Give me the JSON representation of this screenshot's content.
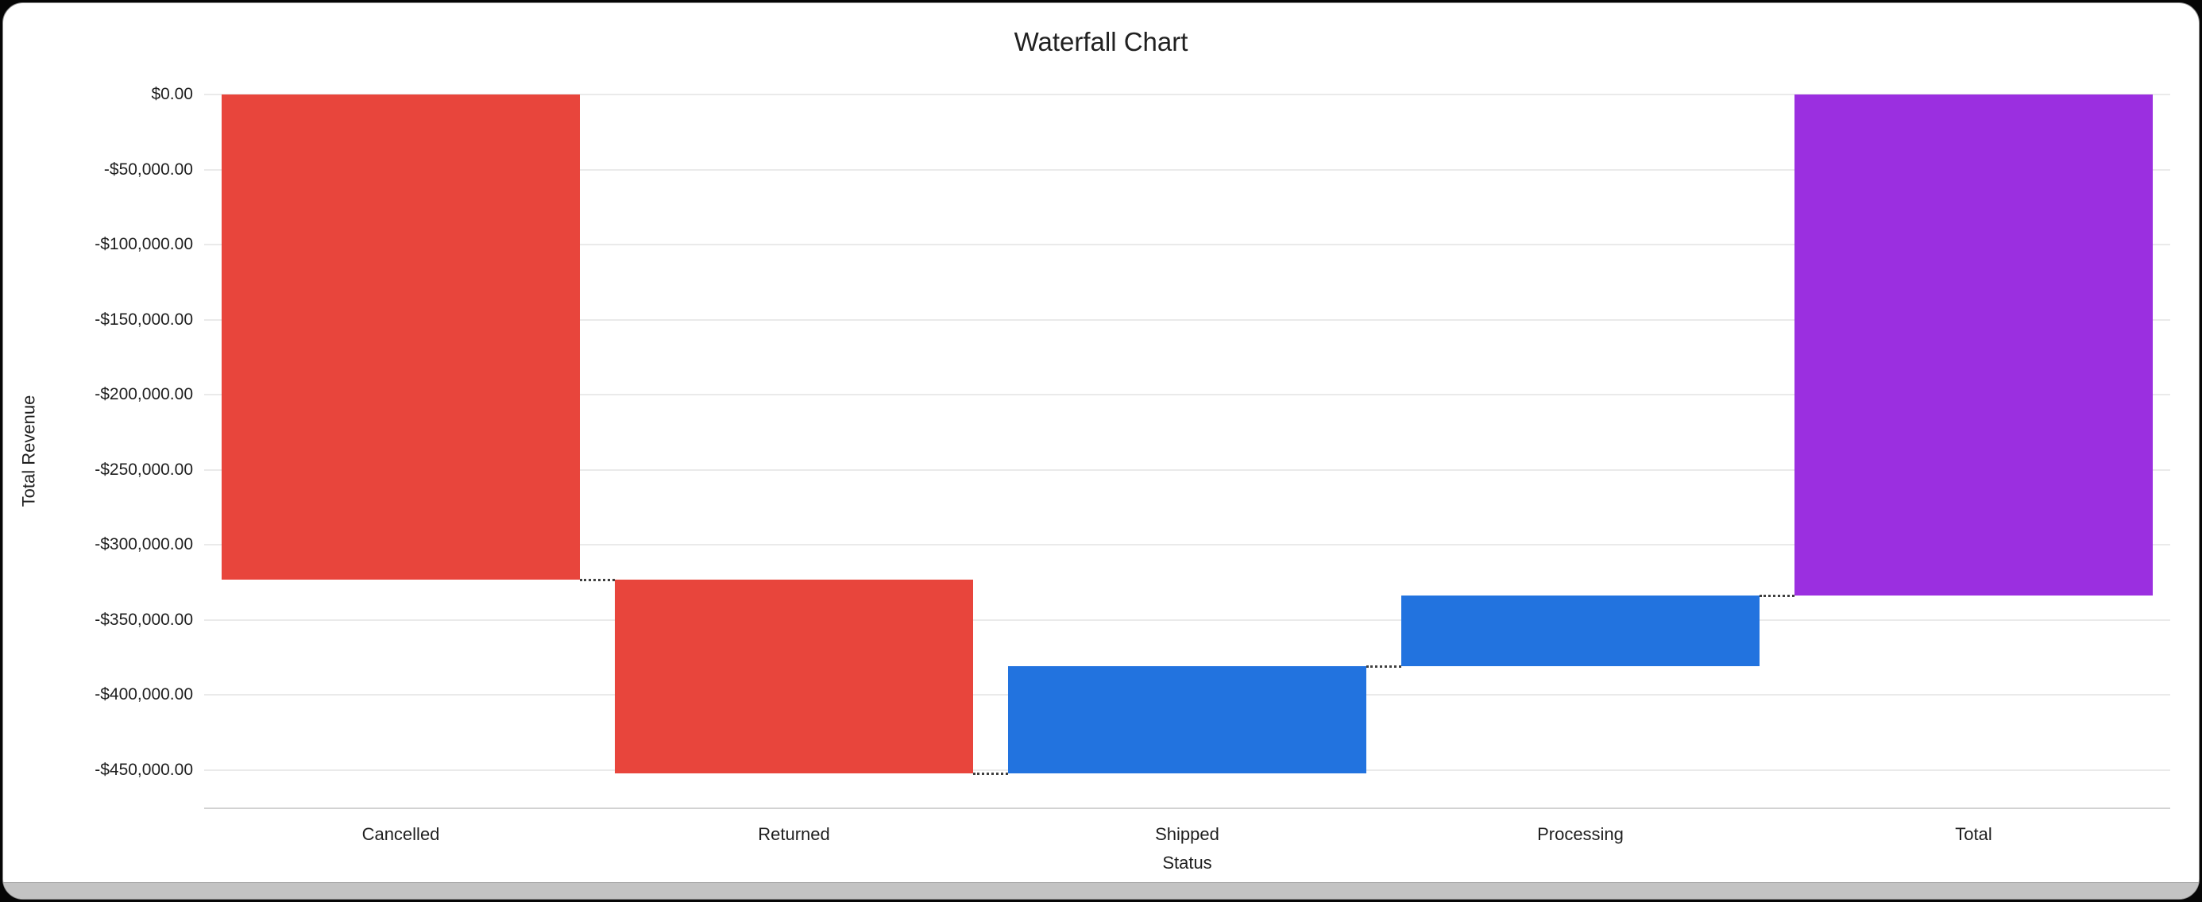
{
  "frame": {
    "background": "#060606",
    "card_background": "#ffffff",
    "bottom_strip_color": "#c3c3c3"
  },
  "chart_data": {
    "type": "bar",
    "subtype": "waterfall",
    "title": "Waterfall Chart",
    "xlabel": "Status",
    "ylabel": "Total Revenue",
    "categories": [
      "Cancelled",
      "Returned",
      "Shipped",
      "Processing",
      "Total"
    ],
    "series": [
      {
        "name": "Cancelled",
        "delta": -323000,
        "cumulative": -323000
      },
      {
        "name": "Returned",
        "delta": -129000,
        "cumulative": -452000
      },
      {
        "name": "Shipped",
        "delta": 71000,
        "cumulative": -381000
      },
      {
        "name": "Processing",
        "delta": 47000,
        "cumulative": -334000
      },
      {
        "name": "Total",
        "delta": -334000,
        "cumulative": -334000
      }
    ],
    "bars": [
      {
        "label": "Cancelled",
        "from": 0,
        "to": -323000,
        "color": "#E8453C",
        "role": "negative"
      },
      {
        "label": "Returned",
        "from": -323000,
        "to": -452000,
        "color": "#E8453C",
        "role": "negative"
      },
      {
        "label": "Shipped",
        "from": -452000,
        "to": -381000,
        "color": "#2273DF",
        "role": "positive"
      },
      {
        "label": "Processing",
        "from": -381000,
        "to": -334000,
        "color": "#2273DF",
        "role": "positive"
      },
      {
        "label": "Total",
        "from": 0,
        "to": -334000,
        "color": "#9B2FE0",
        "role": "total"
      }
    ],
    "connectors": [
      -323000,
      -452000,
      -381000,
      -334000
    ],
    "y_ticks": [
      {
        "value": 0,
        "label": "$0.00"
      },
      {
        "value": -50000,
        "label": "-$50,000.00"
      },
      {
        "value": -100000,
        "label": "-$100,000.00"
      },
      {
        "value": -150000,
        "label": "-$150,000.00"
      },
      {
        "value": -200000,
        "label": "-$200,000.00"
      },
      {
        "value": -250000,
        "label": "-$250,000.00"
      },
      {
        "value": -300000,
        "label": "-$300,000.00"
      },
      {
        "value": -350000,
        "label": "-$350,000.00"
      },
      {
        "value": -400000,
        "label": "-$400,000.00"
      },
      {
        "value": -450000,
        "label": "-$450,000.00"
      }
    ],
    "ylim": [
      -475000,
      0
    ],
    "grid": true,
    "legend": "none",
    "colors": {
      "negative": "#E8453C",
      "positive": "#2273DF",
      "total": "#9B2FE0",
      "gridline": "#eaeaea",
      "axis_text": "#1f1f1f"
    }
  }
}
